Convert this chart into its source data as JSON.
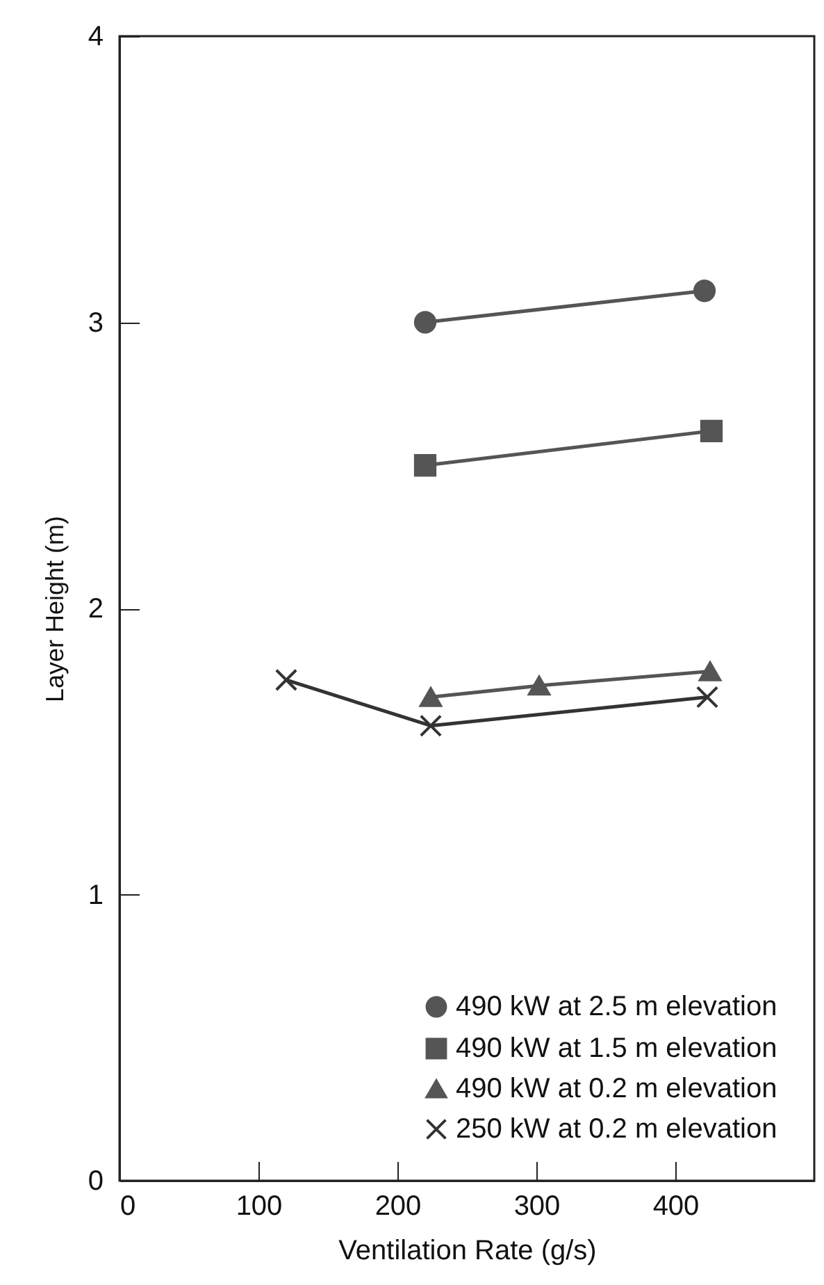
{
  "chart_data": {
    "type": "line",
    "xlabel": "Ventilation Rate (g/s)",
    "ylabel": "Layer Height (m)",
    "xlim": [
      0,
      500
    ],
    "xticks": [
      0,
      100,
      200,
      300,
      400
    ],
    "ylim": [
      0,
      4
    ],
    "yticks": [
      0,
      1,
      2,
      3,
      4
    ],
    "grid": false,
    "legend": "bottom right",
    "series": [
      {
        "name": "490 kW at 2.5 m elevation",
        "color": "#555555",
        "marker": "circle",
        "x": [
          220,
          421
        ],
        "values": [
          3.0,
          3.11
        ]
      },
      {
        "name": "490 kW at 1.5 m elevation",
        "color": "#555555",
        "marker": "square",
        "x": [
          220,
          426
        ],
        "values": [
          2.5,
          2.62
        ]
      },
      {
        "name": "490 kW at 0.2 m elevation",
        "color": "#555555",
        "marker": "triangle",
        "x": [
          224,
          302,
          425
        ],
        "values": [
          1.69,
          1.73,
          1.78
        ]
      },
      {
        "name": "250 kW at 0.2 m elevation",
        "color": "#333333",
        "marker": "cross",
        "x": [
          120,
          224,
          423
        ],
        "values": [
          1.75,
          1.59,
          1.69
        ]
      }
    ]
  }
}
